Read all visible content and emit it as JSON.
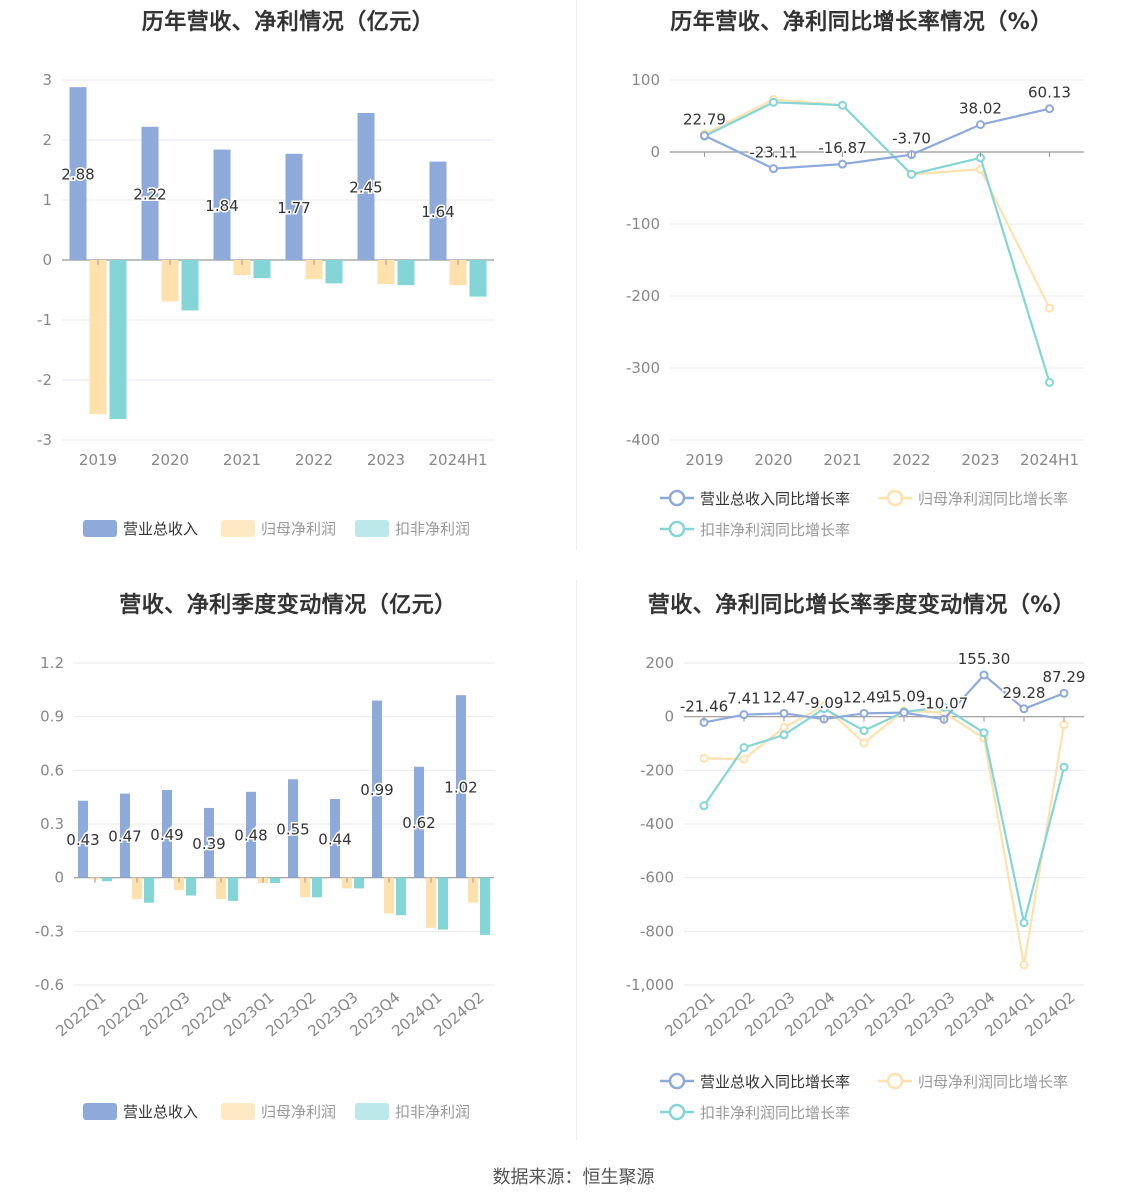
{
  "colors": {
    "revenue": "#8eaadb",
    "parent_profit": "#ffe1ae",
    "deducted_profit": "#84d6d6",
    "axis": "#999999",
    "grid": "#e8eaf0",
    "label": "#333333",
    "tick": "#888888"
  },
  "source": "数据来源：恒生聚源",
  "chart_data": [
    {
      "id": "annual_bar",
      "type": "bar",
      "title": "历年营收、净利情况（亿元）",
      "categories": [
        "2019",
        "2020",
        "2021",
        "2022",
        "2023",
        "2024H1"
      ],
      "series": [
        {
          "name": "营业总收入",
          "values": [
            2.88,
            2.22,
            1.84,
            1.77,
            2.45,
            1.64
          ]
        },
        {
          "name": "归母净利润",
          "values": [
            -2.57,
            -0.69,
            -0.25,
            -0.32,
            -0.4,
            -0.42
          ]
        },
        {
          "name": "扣非净利润",
          "values": [
            -2.65,
            -0.84,
            -0.3,
            -0.39,
            -0.42,
            -0.61
          ]
        }
      ],
      "data_labels": [
        "2.88",
        "2.22",
        "1.84",
        "1.77",
        "2.45",
        "1.64"
      ],
      "ylim": [
        -3,
        3
      ],
      "yticks": [
        3,
        2,
        1,
        0,
        -1,
        -2,
        -3
      ],
      "ytick_labels": [
        "3",
        "2",
        "1",
        "0",
        "-1",
        "-2",
        "-3"
      ],
      "grid": true,
      "legend": "bottom"
    },
    {
      "id": "annual_growth",
      "type": "line",
      "title": "历年营收、净利同比增长率情况（%）",
      "categories": [
        "2019",
        "2020",
        "2021",
        "2022",
        "2023",
        "2024H1"
      ],
      "series": [
        {
          "name": "营业总收入同比增长率",
          "values": [
            22.79,
            -23.11,
            -16.87,
            -3.7,
            38.02,
            60.13
          ]
        },
        {
          "name": "归母净利润同比增长率",
          "values": [
            25,
            73,
            65,
            -31,
            -24,
            -217
          ]
        },
        {
          "name": "扣非净利润同比增长率",
          "values": [
            22,
            69,
            65,
            -31,
            -8,
            -320
          ]
        }
      ],
      "data_labels": [
        "22.79",
        "-23.11",
        "-16.87",
        "-3.70",
        "38.02",
        "60.13"
      ],
      "ylim": [
        -400,
        100
      ],
      "yticks": [
        100,
        0,
        -100,
        -200,
        -300,
        -400
      ],
      "ytick_labels": [
        "100",
        "0",
        "-100",
        "-200",
        "-300",
        "-400"
      ],
      "grid": true,
      "legend": "bottom"
    },
    {
      "id": "quarterly_bar",
      "type": "bar",
      "title": "营收、净利季度变动情况（亿元）",
      "categories": [
        "2022Q1",
        "2022Q2",
        "2022Q3",
        "2022Q4",
        "2023Q1",
        "2023Q2",
        "2023Q3",
        "2023Q4",
        "2024Q1",
        "2024Q2"
      ],
      "series": [
        {
          "name": "营业总收入",
          "values": [
            0.43,
            0.47,
            0.49,
            0.39,
            0.48,
            0.55,
            0.44,
            0.99,
            0.62,
            1.02
          ]
        },
        {
          "name": "归母净利润",
          "values": [
            -0.01,
            -0.12,
            -0.07,
            -0.12,
            -0.03,
            -0.11,
            -0.06,
            -0.2,
            -0.28,
            -0.14
          ]
        },
        {
          "name": "扣非净利润",
          "values": [
            -0.02,
            -0.14,
            -0.1,
            -0.13,
            -0.03,
            -0.11,
            -0.06,
            -0.21,
            -0.29,
            -0.32
          ]
        }
      ],
      "data_labels": [
        "0.43",
        "0.47",
        "0.49",
        "0.39",
        "0.48",
        "0.55",
        "0.44",
        "0.99",
        "0.62",
        "1.02"
      ],
      "ylim": [
        -0.6,
        1.2
      ],
      "yticks": [
        1.2,
        0.9,
        0.6,
        0.3,
        0,
        -0.3,
        -0.6
      ],
      "ytick_labels": [
        "1.2",
        "0.9",
        "0.6",
        "0.3",
        "0",
        "-0.3",
        "-0.6"
      ],
      "grid": true,
      "legend": "bottom"
    },
    {
      "id": "quarterly_growth",
      "type": "line",
      "title": "营收、净利同比增长率季度变动情况（%）",
      "categories": [
        "2022Q1",
        "2022Q2",
        "2022Q3",
        "2022Q4",
        "2023Q1",
        "2023Q2",
        "2023Q3",
        "2023Q4",
        "2024Q1",
        "2024Q2"
      ],
      "series": [
        {
          "name": "营业总收入同比增长率",
          "values": [
            -21.46,
            7.41,
            12.47,
            -9.09,
            12.49,
            15.09,
            -10.07,
            155.3,
            29.28,
            87.29
          ]
        },
        {
          "name": "归母净利润同比增长率",
          "values": [
            -155,
            -158,
            -40,
            40,
            -98,
            22,
            15,
            -80,
            -925,
            -30
          ]
        },
        {
          "name": "扣非净利润同比增长率",
          "values": [
            -332,
            -115,
            -68,
            30,
            -52,
            18,
            35,
            -60,
            -768,
            -188
          ]
        }
      ],
      "data_labels": [
        "-21.46",
        "7.41",
        "12.47",
        "-9.09",
        "12.49",
        "15.09",
        "-10.07",
        "155.30",
        "29.28",
        "87.29"
      ],
      "ylim": [
        -1000,
        200
      ],
      "yticks": [
        200,
        0,
        -200,
        -400,
        -600,
        -800,
        -1000
      ],
      "ytick_labels": [
        "200",
        "0",
        "-200",
        "-400",
        "-600",
        "-800",
        "-1,000"
      ],
      "grid": true,
      "legend": "bottom"
    }
  ]
}
